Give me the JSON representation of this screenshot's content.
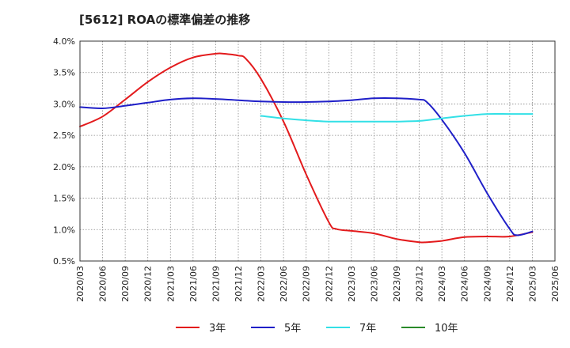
{
  "chart_data": {
    "type": "line",
    "title": "[5612]  ROAの標準偏差の推移",
    "xlabel": "",
    "ylabel": "",
    "ylim": [
      0.5,
      4.0
    ],
    "yticks": [
      0.5,
      1.0,
      1.5,
      2.0,
      2.5,
      3.0,
      3.5,
      4.0
    ],
    "ytick_labels": [
      "0.5%",
      "1.0%",
      "1.5%",
      "2.0%",
      "2.5%",
      "3.0%",
      "3.5%",
      "4.0%"
    ],
    "x_ticks": [
      "2020/03",
      "2020/06",
      "2020/09",
      "2020/12",
      "2021/03",
      "2021/06",
      "2021/09",
      "2021/12",
      "2022/03",
      "2022/06",
      "2022/09",
      "2022/12",
      "2023/03",
      "2023/06",
      "2023/09",
      "2023/12",
      "2024/03",
      "2024/06",
      "2024/09",
      "2024/12",
      "2025/03",
      "2025/06"
    ],
    "grid": true,
    "legend_position": "bottom",
    "series": [
      {
        "name": "3年",
        "color": "#e31a1c",
        "x": [
          "2020/03",
          "2020/06",
          "2020/09",
          "2020/12",
          "2021/03",
          "2021/06",
          "2021/09",
          "2021/10",
          "2021/12",
          "2022/01",
          "2022/03",
          "2022/06",
          "2022/09",
          "2022/12",
          "2023/01",
          "2023/03",
          "2023/06",
          "2023/09",
          "2023/12",
          "2024/01",
          "2024/03",
          "2024/06",
          "2024/09",
          "2024/12",
          "2025/03"
        ],
        "values": [
          2.64,
          2.8,
          3.07,
          3.35,
          3.58,
          3.74,
          3.8,
          3.8,
          3.77,
          3.72,
          3.4,
          2.72,
          1.88,
          1.12,
          1.01,
          0.98,
          0.94,
          0.85,
          0.8,
          0.8,
          0.82,
          0.88,
          0.89,
          0.89,
          0.96
        ]
      },
      {
        "name": "5年",
        "color": "#1f1fc8",
        "x": [
          "2020/03",
          "2020/06",
          "2020/09",
          "2020/12",
          "2021/03",
          "2021/06",
          "2021/09",
          "2021/12",
          "2022/03",
          "2022/06",
          "2022/09",
          "2022/12",
          "2023/03",
          "2023/06",
          "2023/09",
          "2023/12",
          "2024/01",
          "2024/03",
          "2024/06",
          "2024/09",
          "2024/12",
          "2025/01",
          "2025/03"
        ],
        "values": [
          2.95,
          2.93,
          2.97,
          3.02,
          3.07,
          3.09,
          3.08,
          3.06,
          3.04,
          3.03,
          3.03,
          3.04,
          3.06,
          3.09,
          3.09,
          3.07,
          3.03,
          2.75,
          2.22,
          1.58,
          1.01,
          0.91,
          0.97
        ]
      },
      {
        "name": "7年",
        "color": "#33e0e6",
        "x": [
          "2022/03",
          "2022/06",
          "2022/09",
          "2022/12",
          "2023/03",
          "2023/06",
          "2023/09",
          "2023/12",
          "2024/03",
          "2024/06",
          "2024/09",
          "2024/12",
          "2025/03"
        ],
        "values": [
          2.81,
          2.77,
          2.74,
          2.72,
          2.72,
          2.72,
          2.72,
          2.73,
          2.77,
          2.81,
          2.84,
          2.84,
          2.84
        ]
      },
      {
        "name": "10年",
        "color": "#2a8a2a",
        "x": [],
        "values": []
      }
    ]
  }
}
